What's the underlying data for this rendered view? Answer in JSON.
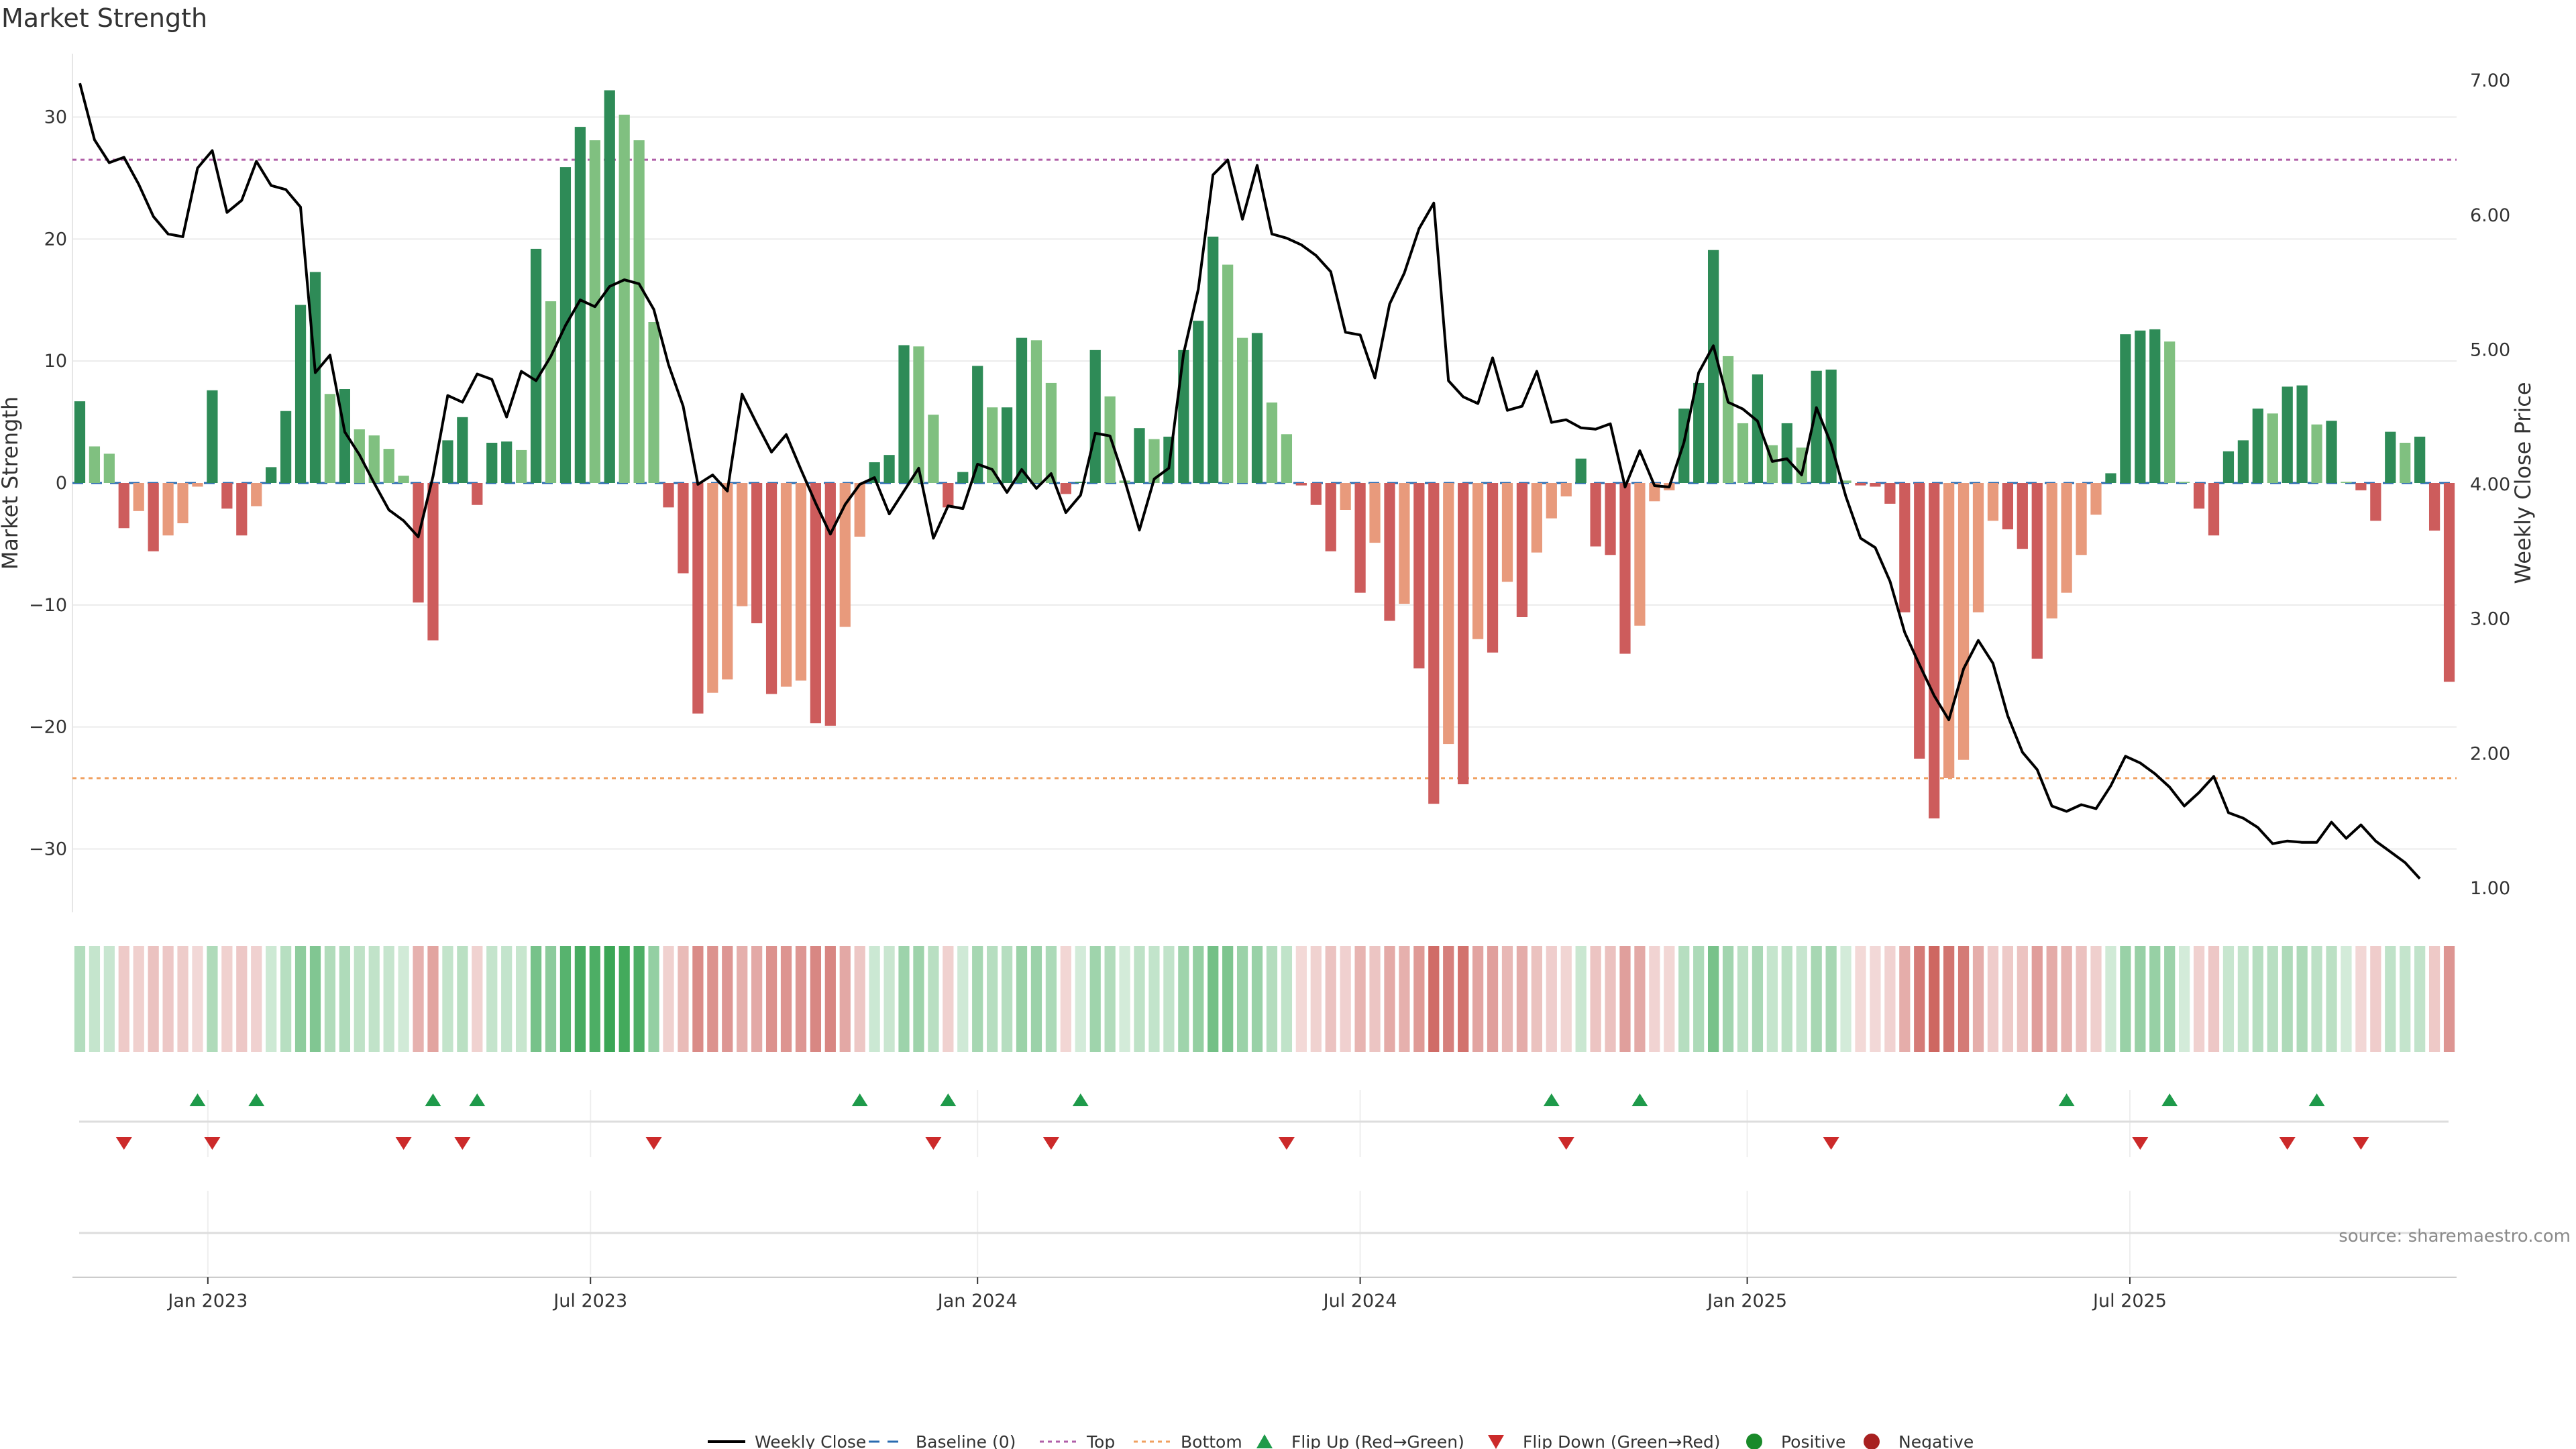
{
  "title": "Market Strength",
  "source": "source: sharemaestro.com",
  "chart_data": {
    "type": "bar",
    "left_axis": {
      "label": "Market Strength",
      "ticks": [
        -30,
        -20,
        -10,
        0,
        10,
        20,
        30
      ],
      "range": [
        -35.2,
        35.2
      ]
    },
    "right_axis": {
      "label": "Weekly Close Price",
      "ticks": [
        1.0,
        2.0,
        3.0,
        4.0,
        5.0,
        6.0,
        7.0
      ],
      "tick_labels": [
        "1.00",
        "2.00",
        "3.00",
        "4.00",
        "5.00",
        "6.00",
        "7.00"
      ],
      "range": [
        0.82,
        7.2
      ]
    },
    "x_axis": {
      "tick_labels": [
        "Jan 2023",
        "Jul 2023",
        "Jan 2024",
        "Jul 2024",
        "Jan 2025",
        "Jul 2025"
      ],
      "tick_weeks": [
        8.7,
        34.7,
        61.0,
        87.0,
        113.3,
        139.3
      ]
    },
    "top_level": 26.5,
    "bottom_level": -24.2,
    "strength": [
      6.7,
      3.0,
      2.4,
      -3.7,
      -2.3,
      -5.6,
      -4.3,
      -3.3,
      -0.3,
      7.6,
      -2.1,
      -4.3,
      -1.9,
      1.3,
      5.9,
      14.6,
      17.3,
      7.3,
      7.7,
      4.4,
      3.9,
      2.8,
      0.6,
      -9.8,
      -12.9,
      3.5,
      5.4,
      -1.8,
      3.3,
      3.4,
      2.7,
      19.2,
      14.9,
      25.9,
      29.2,
      28.1,
      32.2,
      30.2,
      28.1,
      13.2,
      -2.0,
      -7.4,
      -18.9,
      -17.2,
      -16.1,
      -10.1,
      -11.5,
      -17.3,
      -16.7,
      -16.2,
      -19.7,
      -19.9,
      -11.8,
      -4.4,
      1.7,
      2.3,
      11.3,
      11.2,
      5.6,
      -2.0,
      0.9,
      9.6,
      6.2,
      6.2,
      11.9,
      11.7,
      8.2,
      -0.9,
      0.1,
      10.9,
      7.1,
      0.2,
      4.5,
      3.6,
      3.8,
      10.9,
      13.3,
      20.2,
      17.9,
      11.9,
      12.3,
      6.6,
      4.0,
      -0.2,
      -1.8,
      -5.6,
      -2.2,
      -9.0,
      -4.9,
      -11.3,
      -9.9,
      -15.2,
      -26.3,
      -21.4,
      -24.7,
      -12.8,
      -13.9,
      -8.1,
      -11.0,
      -5.7,
      -2.9,
      -1.1,
      2.0,
      -5.2,
      -5.9,
      -14.0,
      -11.7,
      -1.5,
      -0.6,
      6.1,
      8.2,
      19.1,
      10.4,
      4.9,
      8.9,
      3.1,
      4.9,
      2.9,
      9.2,
      9.3,
      0.2,
      -0.2,
      -0.3,
      -1.7,
      -10.6,
      -22.6,
      -27.5,
      -24.2,
      -22.7,
      -10.6,
      -3.1,
      -3.8,
      -5.4,
      -14.4,
      -11.1,
      -9.0,
      -5.9,
      -2.6,
      0.8,
      12.2,
      12.5,
      12.6,
      11.6,
      0.1,
      -2.1,
      -4.3,
      2.6,
      3.5,
      6.1,
      5.7,
      7.9,
      8.0,
      4.8,
      5.1,
      0.1,
      -0.6,
      -3.1,
      4.2,
      3.3,
      3.8,
      -3.9,
      -16.3
    ],
    "weekly_close": [
      6.98,
      6.56,
      6.39,
      6.43,
      6.23,
      5.99,
      5.86,
      5.84,
      6.35,
      6.48,
      6.02,
      6.11,
      6.4,
      6.22,
      6.19,
      6.06,
      4.83,
      4.96,
      4.39,
      4.22,
      4.01,
      3.81,
      3.73,
      3.61,
      4.06,
      4.66,
      4.61,
      4.82,
      4.78,
      4.5,
      4.84,
      4.77,
      4.95,
      5.18,
      5.37,
      5.32,
      5.47,
      5.52,
      5.49,
      5.3,
      4.89,
      4.58,
      4.0,
      4.07,
      3.95,
      4.67,
      4.45,
      4.24,
      4.37,
      4.11,
      3.86,
      3.63,
      3.85,
      4.0,
      4.05,
      3.78,
      3.95,
      4.12,
      3.6,
      3.84,
      3.82,
      4.15,
      4.11,
      3.94,
      4.11,
      3.97,
      4.08,
      3.79,
      3.92,
      4.38,
      4.36,
      4.03,
      3.66,
      4.04,
      4.12,
      4.97,
      5.45,
      6.3,
      6.41,
      5.97,
      6.37,
      5.86,
      5.83,
      5.78,
      5.7,
      5.58,
      5.13,
      5.11,
      4.79,
      5.34,
      5.57,
      5.9,
      6.09,
      4.77,
      4.65,
      4.6,
      4.94,
      4.55,
      4.58,
      4.84,
      4.46,
      4.48,
      4.42,
      4.41,
      4.45,
      3.98,
      4.25,
      3.99,
      3.98,
      4.31,
      4.83,
      5.03,
      4.61,
      4.56,
      4.47,
      4.17,
      4.19,
      4.07,
      4.57,
      4.3,
      3.91,
      3.6,
      3.53,
      3.28,
      2.9,
      2.66,
      2.43,
      2.25,
      2.63,
      2.84,
      2.67,
      2.28,
      2.01,
      1.88,
      1.61,
      1.57,
      1.62,
      1.59,
      1.76,
      1.98,
      1.93,
      1.85,
      1.75,
      1.61,
      1.71,
      1.83,
      1.56,
      1.52,
      1.45,
      1.33,
      1.35,
      1.34,
      1.34,
      1.49,
      1.37,
      1.47,
      1.35,
      1.27,
      1.19,
      1.07
    ],
    "flip_up_weeks": [
      8,
      12,
      24,
      27,
      53,
      59,
      68,
      100,
      106,
      135,
      142,
      152
    ],
    "flip_down_weeks": [
      3,
      9,
      22,
      26,
      39,
      58,
      66,
      82,
      101,
      119,
      140,
      150,
      155
    ],
    "colors": {
      "positive_strong": "#2e8b57",
      "positive_light": "#80c080",
      "negative_strong": "#cd5c5c",
      "negative_light": "#e89a7c",
      "line": "#000000",
      "top": "#b05fa8",
      "bottom": "#f0a060",
      "baseline": "#2a6bb0",
      "flip_up": "#1e9a4a",
      "flip_down": "#cc2a2a",
      "dot_positive": "#1a8a2a",
      "dot_negative": "#a82020"
    },
    "legend": [
      {
        "label": "Weekly Close",
        "kind": "line"
      },
      {
        "label": "Baseline (0)",
        "kind": "dash-blue"
      },
      {
        "label": "Top",
        "kind": "dot-purple"
      },
      {
        "label": "Bottom",
        "kind": "dot-orange"
      },
      {
        "label": "Flip Up (Red→Green)",
        "kind": "tri-up"
      },
      {
        "label": "Flip Down (Green→Red)",
        "kind": "tri-down"
      },
      {
        "label": "Positive",
        "kind": "dot-pos"
      },
      {
        "label": "Negative",
        "kind": "dot-neg"
      }
    ]
  }
}
